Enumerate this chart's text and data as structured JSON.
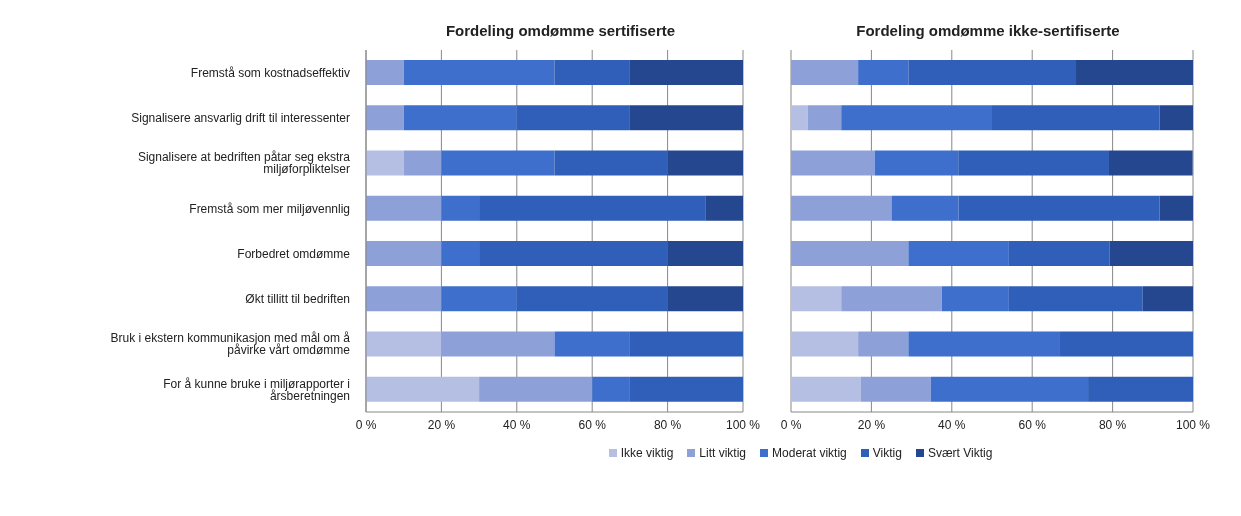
{
  "chart_data": [
    {
      "type": "bar",
      "orientation": "horizontal",
      "stacked": true,
      "title": "Fordeling omdømme sertifiserte",
      "categories": [
        "Fremstå som kostnadseffektiv",
        "Signalisere ansvarlig drift til interessenter",
        "Signalisere at bedriften påtar seg ekstra miljøforpliktelser",
        "Fremstå som mer miljøvennlig",
        "Forbedret omdømme",
        "Økt tillitt til bedriften",
        "Bruk i ekstern kommunikasjon med mål om å påvirke vårt omdømme",
        "For å kunne bruke i miljørapporter i årsberetningen"
      ],
      "series": [
        {
          "name": "Ikke viktig",
          "color": "#b4bfe3",
          "values": [
            0,
            0,
            10,
            0,
            0,
            0,
            20,
            30
          ]
        },
        {
          "name": "Litt viktig",
          "color": "#8da0d8",
          "values": [
            10,
            10,
            10,
            20,
            20,
            20,
            30,
            30
          ]
        },
        {
          "name": "Moderat viktig",
          "color": "#3f6fcc",
          "values": [
            40,
            30,
            30,
            10,
            10,
            20,
            20,
            10
          ]
        },
        {
          "name": "Viktig",
          "color": "#2f5fb8",
          "values": [
            20,
            30,
            30,
            60,
            50,
            40,
            30,
            30
          ]
        },
        {
          "name": "Svært Viktig",
          "color": "#24478f",
          "values": [
            30,
            30,
            20,
            10,
            20,
            20,
            0,
            0
          ]
        }
      ],
      "xlim": [
        0,
        100
      ],
      "xticks": [
        {
          "value": 0,
          "label": "0 %"
        },
        {
          "value": 20,
          "label": "20 %"
        },
        {
          "value": 40,
          "label": "40 %"
        },
        {
          "value": 60,
          "label": "60 %"
        },
        {
          "value": 80,
          "label": "80 %"
        },
        {
          "value": 100,
          "label": "100 %"
        }
      ],
      "grid": "x",
      "legend": "bottom"
    },
    {
      "type": "bar",
      "orientation": "horizontal",
      "stacked": true,
      "title": "Fordeling omdømme ikke-sertifiserte",
      "categories": [
        null,
        null,
        null,
        null,
        null,
        null,
        null,
        null
      ],
      "series": [
        {
          "color": "#b4bfe3",
          "values": [
            0,
            4.2,
            0,
            0,
            0,
            12.5,
            16.7,
            17.4
          ]
        },
        {
          "color": "#8da0d8",
          "values": [
            16.7,
            8.3,
            20.8,
            25,
            29.2,
            25,
            12.5,
            17.4
          ]
        },
        {
          "color": "#3f6fcc",
          "values": [
            12.5,
            37.5,
            20.8,
            16.7,
            25,
            16.7,
            37.5,
            39.1
          ]
        },
        {
          "color": "#2f5fb8",
          "values": [
            41.7,
            41.7,
            37.5,
            50,
            25,
            33.3,
            33.3,
            26.1
          ]
        },
        {
          "color": "#24478f",
          "values": [
            29.2,
            8.3,
            20.8,
            8.3,
            20.8,
            12.5,
            0,
            0
          ]
        }
      ],
      "xlim": [
        0,
        100
      ],
      "xticks": [
        {
          "value": 0,
          "label": "0 %"
        },
        {
          "value": 20,
          "label": "20 %"
        },
        {
          "value": 40,
          "label": "40 %"
        },
        {
          "value": 60,
          "label": "60 %"
        },
        {
          "value": 80,
          "label": "80 %"
        },
        {
          "value": 100,
          "label": "100 %"
        }
      ],
      "grid": "x",
      "tick_labels": "x"
    }
  ]
}
